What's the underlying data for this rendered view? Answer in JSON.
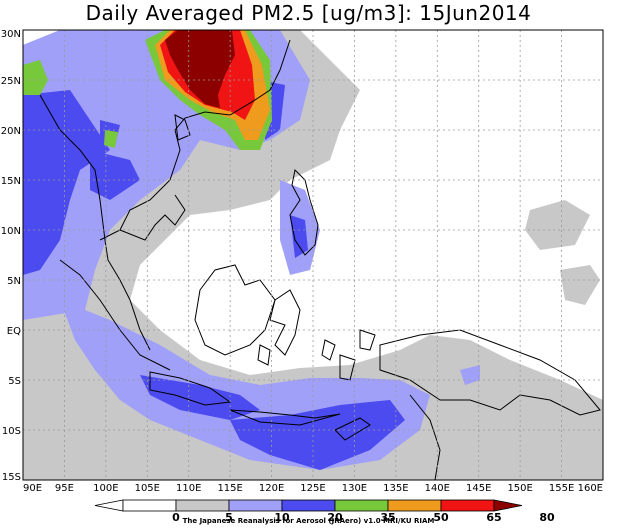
{
  "title": "Daily Averaged PM2.5 [ug/m3]: 15Jun2014",
  "credit": "The Japanese Reanalysis for Aerosol (JRAero) v1.0 MRI/KU RIAM",
  "axes": {
    "lon_labels": [
      "90E",
      "95E",
      "100E",
      "105E",
      "110E",
      "115E",
      "120E",
      "125E",
      "130E",
      "135E",
      "140E",
      "145E",
      "150E",
      "155E",
      "160E"
    ],
    "lat_labels": [
      "30N",
      "25N",
      "20N",
      "15N",
      "10N",
      "5N",
      "EQ",
      "5S",
      "10S",
      "15S"
    ]
  },
  "colorbar": {
    "levels": [
      "0",
      "5",
      "10",
      "20",
      "35",
      "50",
      "65",
      "80"
    ],
    "colors": [
      "#ffffff",
      "#ffffff",
      "#c8c8c8",
      "#a0a0f8",
      "#4b4bef",
      "#78c83c",
      "#ee9b1e",
      "#f01414",
      "#8c0000"
    ]
  },
  "chart_data": {
    "type": "heatmap",
    "title": "Daily Averaged PM2.5 [ug/m3]: 15Jun2014",
    "x_range": [
      90,
      160
    ],
    "y_range": [
      -15,
      30
    ],
    "grid": true,
    "color_levels": [
      0,
      5,
      10,
      20,
      35,
      50,
      65,
      80
    ]
  }
}
